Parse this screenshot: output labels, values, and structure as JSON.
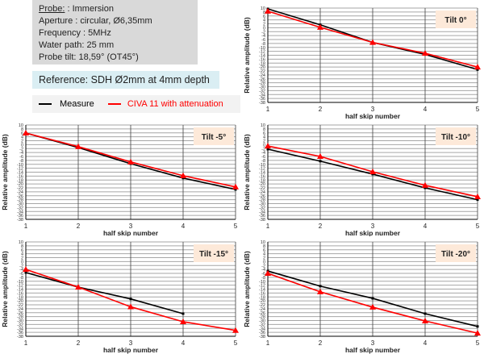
{
  "info": {
    "probe_label": "Probe:",
    "probe_value": " : Immersion",
    "aperture": "Aperture : circular, Ø6,35mm",
    "frequency": "Frequency : 5MHz",
    "water_path": "Water path: 25 mm",
    "probe_tilt": "Probe tilt: 18,59° (OT45°)"
  },
  "reference": "Reference: SDH Ø2mm at 4mm depth",
  "legend": {
    "measure": "Measure",
    "civa": "CIVA 11 with attenuation"
  },
  "colors": {
    "measure": "#000000",
    "civa": "#ff0000",
    "badge": "#fde9d9",
    "info_bg": "#d9d9d9",
    "ref_bg": "#daeef3"
  },
  "chart_data": [
    {
      "type": "line",
      "title": "Tilt 0°",
      "xlabel": "half skip number",
      "ylabel": "Relative amplitude (dB)",
      "x": [
        1,
        2,
        3,
        4,
        5
      ],
      "ylim": [
        -38,
        10
      ],
      "ytick_step": 2,
      "grid": true,
      "series": [
        {
          "name": "Measure",
          "values": [
            9.6,
            1.5,
            -7.5,
            -13.6,
            -21.3
          ]
        },
        {
          "name": "CIVA 11 with attenuation",
          "values": [
            8.4,
            0.2,
            -7.5,
            -13.0,
            -20.0
          ]
        }
      ]
    },
    {
      "type": "line",
      "title": "Tilt -5°",
      "xlabel": "half skip number",
      "ylabel": "Relative amplitude (dB)",
      "x": [
        1,
        2,
        3,
        4,
        5
      ],
      "ylim": [
        -38,
        10
      ],
      "ytick_step": 2,
      "grid": true,
      "series": [
        {
          "name": "Measure",
          "values": [
            5.9,
            -1.5,
            -9.7,
            -17.0,
            -22.8
          ]
        },
        {
          "name": "CIVA 11 with attenuation",
          "values": [
            5.9,
            -1.0,
            -8.8,
            -15.8,
            -21.5
          ]
        }
      ]
    },
    {
      "type": "line",
      "title": "Tilt -10°",
      "xlabel": "half skip number",
      "ylabel": "Relative amplitude (dB)",
      "x": [
        1,
        2,
        3,
        4,
        5
      ],
      "ylim": [
        -38,
        10
      ],
      "ytick_step": 2,
      "grid": true,
      "series": [
        {
          "name": "Measure",
          "values": [
            -2.3,
            -8.4,
            -15.0,
            -22.0,
            -28.0
          ]
        },
        {
          "name": "CIVA 11 with attenuation",
          "values": [
            -0.7,
            -6.0,
            -13.8,
            -20.7,
            -26.5
          ]
        }
      ]
    },
    {
      "type": "line",
      "title": "Tilt -15°",
      "xlabel": "half skip number",
      "ylabel": "Relative amplitude (dB)",
      "x": [
        1,
        2,
        3,
        4,
        5
      ],
      "ylim": [
        -38,
        10
      ],
      "ytick_step": 2,
      "grid": true,
      "series": [
        {
          "name": "Measure",
          "values": [
            -5.6,
            -13.0,
            -19.0,
            -26.5,
            null
          ]
        },
        {
          "name": "CIVA 11 with attenuation",
          "values": [
            -4.0,
            -13.0,
            -23.0,
            -30.6,
            -35.0
          ]
        }
      ]
    },
    {
      "type": "line",
      "title": "Tilt -20°",
      "xlabel": "half skip number",
      "ylabel": "Relative amplitude (dB)",
      "x": [
        1,
        2,
        3,
        4,
        5
      ],
      "ylim": [
        -38,
        10
      ],
      "ytick_step": 2,
      "grid": true,
      "series": [
        {
          "name": "Measure",
          "values": [
            -4.8,
            -12.5,
            -18.7,
            -26.5,
            -33.0
          ]
        },
        {
          "name": "CIVA 11 with attenuation",
          "values": [
            -6.0,
            -15.4,
            -23.2,
            -30.2,
            -36.4
          ]
        }
      ]
    }
  ]
}
